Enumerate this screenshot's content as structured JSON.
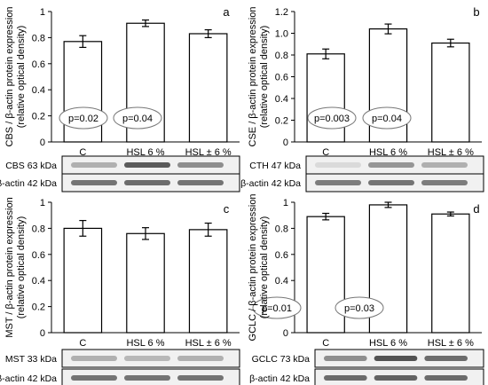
{
  "chart_data": [
    {
      "type": "bar",
      "panel_letter": "a",
      "ylabel": "CBS / β-actin protein expression",
      "ylabel_sub": "(relative optical density)",
      "ylim": [
        0,
        1
      ],
      "yticks": [
        "0",
        "0.2",
        "0.4",
        "0.6",
        "0.8",
        "1"
      ],
      "categories": [
        "C",
        "HSL 6 %",
        "HSL ± 6 %"
      ],
      "values": [
        0.77,
        0.91,
        0.83
      ],
      "errors": [
        0.045,
        0.025,
        0.03
      ],
      "annotations": [
        "p=0.02",
        "p=0.04"
      ],
      "blot_labels": [
        "CBS 63 kDa",
        "β-actin 42 kDa"
      ]
    },
    {
      "type": "bar",
      "panel_letter": "b",
      "ylabel": "CSE / β-actin protein expression",
      "ylabel_sub": "(relative optical density)",
      "ylim": [
        0,
        1.2
      ],
      "yticks": [
        "0",
        "0.2",
        "0.4",
        "0.6",
        "0.8",
        "1.0",
        "1.2"
      ],
      "categories": [
        "C",
        "HSL 6 %",
        "HSL ± 6 %"
      ],
      "values": [
        0.81,
        1.04,
        0.91
      ],
      "errors": [
        0.045,
        0.045,
        0.035
      ],
      "annotations": [
        "p=0.003",
        "p=0.04"
      ],
      "blot_labels": [
        "CTH 47 kDa",
        "β-actin 42 kDa"
      ]
    },
    {
      "type": "bar",
      "panel_letter": "c",
      "ylabel": "MST / β-actin protein expression",
      "ylabel_sub": "(relative optical density)",
      "ylim": [
        0,
        1
      ],
      "yticks": [
        "0",
        "0.2",
        "0.4",
        "0.6",
        "0.8",
        "1"
      ],
      "categories": [
        "C",
        "HSL 6 %",
        "HSL ± 6 %"
      ],
      "values": [
        0.8,
        0.76,
        0.79
      ],
      "errors": [
        0.06,
        0.045,
        0.05
      ],
      "annotations": [],
      "blot_labels": [
        "MST 33 kDa",
        "β-actin 42 kDa"
      ]
    },
    {
      "type": "bar",
      "panel_letter": "d",
      "ylabel": "GCLC / β-actin protein expression",
      "ylabel_sub": "(relative optical density)",
      "ylim": [
        0,
        1
      ],
      "yticks": [
        "0",
        "0.2",
        "0.4",
        "0.6",
        "0.8",
        "1"
      ],
      "categories": [
        "C",
        "HSL 6 %",
        "HSL ± 6 %"
      ],
      "values": [
        0.89,
        0.98,
        0.91
      ],
      "errors": [
        0.025,
        0.02,
        0.015
      ],
      "annotations": [
        "p=0.01",
        "p=0.03"
      ],
      "blot_labels": [
        "GCLC 73 kDa",
        "β-actin 42 kDa"
      ]
    }
  ]
}
